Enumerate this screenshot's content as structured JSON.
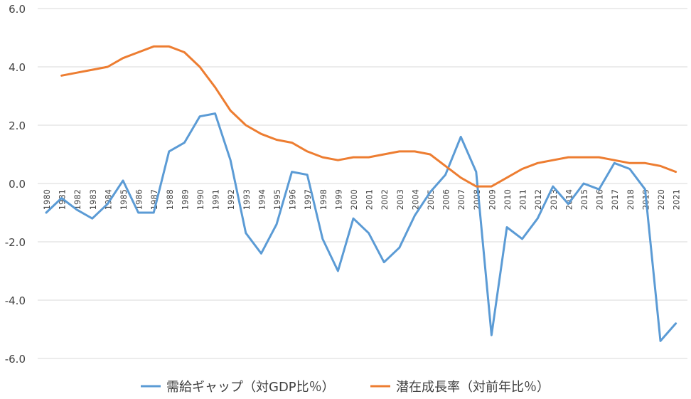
{
  "chart_data": {
    "type": "line",
    "title": "",
    "xlabel": "",
    "ylabel": "",
    "ylim": [
      -6,
      6
    ],
    "yticks": [
      "6.0",
      "4.0",
      "2.0",
      "0.0",
      "-2.0",
      "-4.0",
      "-6.0"
    ],
    "grid": true,
    "legend_position": "bottom",
    "categories": [
      "1980",
      "1981",
      "1982",
      "1983",
      "1984",
      "1985",
      "1986",
      "1987",
      "1988",
      "1989",
      "1990",
      "1991",
      "1992",
      "1993",
      "1994",
      "1995",
      "1996",
      "1997",
      "1998",
      "1999",
      "2000",
      "2001",
      "2002",
      "2003",
      "2004",
      "2005",
      "2006",
      "2007",
      "2008",
      "2009",
      "2010",
      "2011",
      "2012",
      "2013",
      "2014",
      "2015",
      "2016",
      "2017",
      "2018",
      "2019",
      "2020",
      "2021"
    ],
    "series": [
      {
        "name": "需給ギャップ（対GDP比％）",
        "color": "#5b9bd5",
        "values": [
          -1.0,
          -0.5,
          -0.9,
          -1.2,
          -0.7,
          0.1,
          -1.0,
          -1.0,
          1.1,
          1.4,
          2.3,
          2.4,
          0.8,
          -1.7,
          -2.4,
          -1.4,
          0.4,
          0.3,
          -1.9,
          -3.0,
          -1.2,
          -1.7,
          -2.7,
          -2.2,
          -1.1,
          -0.3,
          0.3,
          1.6,
          0.4,
          -5.2,
          -1.5,
          -1.9,
          -1.2,
          -0.1,
          -0.7,
          0.0,
          -0.2,
          0.7,
          0.5,
          -0.2,
          -5.4,
          -4.8
        ]
      },
      {
        "name": "潜在成長率（対前年比％）",
        "color": "#ed7d31",
        "values": [
          null,
          3.7,
          3.8,
          3.9,
          4.0,
          4.3,
          4.5,
          4.7,
          4.7,
          4.5,
          4.0,
          3.3,
          2.5,
          2.0,
          1.7,
          1.5,
          1.4,
          1.1,
          0.9,
          0.8,
          0.9,
          0.9,
          1.0,
          1.1,
          1.1,
          1.0,
          0.6,
          0.2,
          -0.1,
          -0.1,
          0.2,
          0.5,
          0.7,
          0.8,
          0.9,
          0.9,
          0.9,
          0.8,
          0.7,
          0.7,
          0.6,
          0.4
        ]
      }
    ]
  }
}
